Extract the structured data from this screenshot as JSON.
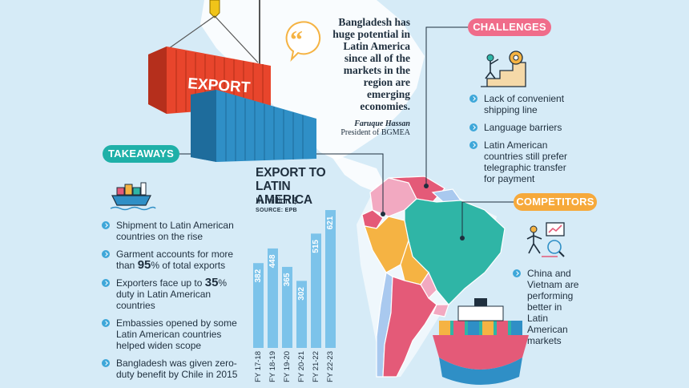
{
  "quote": {
    "text": "Bangladesh has huge potential in Latin America since all of the markets in the region are emerging economies.",
    "author": "Faruque Hassan",
    "role": "President of BGMEA"
  },
  "container_label": "EXPORT",
  "challenges": {
    "label": "CHALLENGES",
    "items": [
      "Lack of convenient shipping line",
      "Language barriers",
      "Latin American countries still prefer telegraphic transfer for payment"
    ]
  },
  "competitors": {
    "label": "COMPETITORS",
    "text": "China and Vietnam are performing better in Latin American markets"
  },
  "takeaways": {
    "label": "TAKEAWAYS",
    "items": [
      {
        "pre": "Shipment to Latin American countries on the rise",
        "big": "",
        "post": ""
      },
      {
        "pre": "Garment accounts for more than ",
        "big": "95",
        "post": "% of total exports"
      },
      {
        "pre": "Exporters face up to ",
        "big": "35",
        "post": "% duty in Latin American countries"
      },
      {
        "pre": "Embassies opened by some Latin American countries helped widen scope",
        "big": "",
        "post": ""
      },
      {
        "pre": "Bangladesh was given zero-duty benefit by Chile in 2015",
        "big": "",
        "post": ""
      }
    ]
  },
  "colors": {
    "bar": "#7cc3ea",
    "bar_label": "#ffffff",
    "container_red": "#e8452c",
    "container_blue": "#2f8fc6",
    "pill_challenges": "#f06c8a",
    "pill_competitors": "#f6a93b",
    "pill_takeaways": "#1fb0a8"
  },
  "chart_data": {
    "type": "bar",
    "title": "EXPORT TO LATIN AMERICA",
    "subtitle": "In million $",
    "source": "SOURCE: EPB",
    "categories": [
      "FY 17-18",
      "FY 18-19",
      "FY 19-20",
      "FY 20-21",
      "FY 21-22",
      "FY 22-23"
    ],
    "values": [
      382,
      448,
      365,
      302,
      515,
      621
    ],
    "ylim": [
      0,
      650
    ],
    "grid": false,
    "legend": "none"
  }
}
